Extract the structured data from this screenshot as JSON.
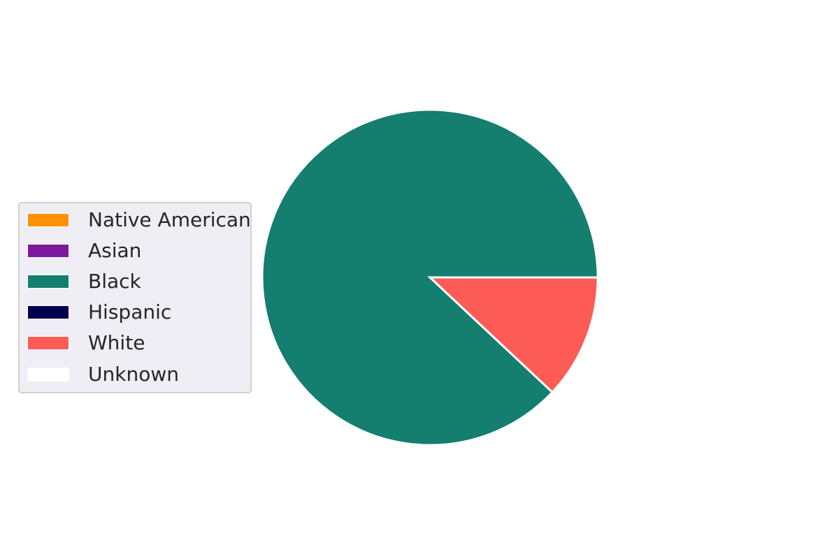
{
  "chart_data": {
    "type": "pie",
    "categories": [
      "Native American",
      "Asian",
      "Black",
      "Hispanic",
      "White",
      "Unknown"
    ],
    "values": [
      0,
      0,
      88,
      0,
      12,
      0
    ],
    "colors": [
      "#ff9100",
      "#7b1a9c",
      "#147e6f",
      "#030050",
      "#fd5b56",
      "#ffffff"
    ],
    "start_angle_deg": 0,
    "direction": "counterclockwise",
    "legend_placement": "center-left",
    "slice_edge_color": "#ffffff"
  },
  "legend": {
    "items": [
      {
        "label": "Native American",
        "color": "#ff9100"
      },
      {
        "label": "Asian",
        "color": "#7b1a9c"
      },
      {
        "label": "Black",
        "color": "#147e6f"
      },
      {
        "label": "Hispanic",
        "color": "#030050"
      },
      {
        "label": "White",
        "color": "#fd5b56"
      },
      {
        "label": "Unknown",
        "color": "#ffffff"
      }
    ]
  }
}
